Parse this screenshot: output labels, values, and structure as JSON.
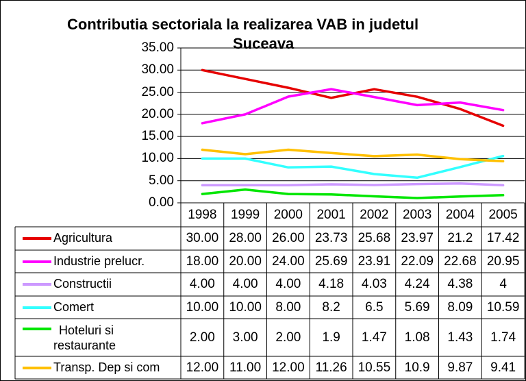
{
  "chart_data": {
    "type": "line",
    "title_line1": "Contributia sectoriala la realizarea VAB in judetul",
    "title_line2": "Suceava",
    "categories": [
      "1998",
      "1999",
      "2000",
      "2001",
      "2002",
      "2003",
      "2004",
      "2005"
    ],
    "ylim": [
      0,
      35
    ],
    "yticks": [
      "35.00",
      "30.00",
      "25.00",
      "20.00",
      "15.00",
      "10.00",
      "5.00",
      "0.00"
    ],
    "grid": true,
    "legend_placement": "data-table",
    "series": [
      {
        "name": "Agricultura",
        "color": "#e60000",
        "values": [
          30.0,
          28.0,
          26.0,
          23.73,
          25.68,
          23.97,
          21.2,
          17.42
        ],
        "labels": [
          "30.00",
          "28.00",
          "26.00",
          "23.73",
          "25.68",
          "23.97",
          "21.2",
          "17.42"
        ]
      },
      {
        "name": "Industrie prelucr.",
        "color": "#ff00ff",
        "values": [
          18.0,
          20.0,
          24.0,
          25.69,
          23.91,
          22.09,
          22.68,
          20.95
        ],
        "labels": [
          "18.00",
          "20.00",
          "24.00",
          "25.69",
          "23.91",
          "22.09",
          "22.68",
          "20.95"
        ]
      },
      {
        "name": "Constructii",
        "color": "#cc99ff",
        "values": [
          4.0,
          4.0,
          4.0,
          4.18,
          4.03,
          4.24,
          4.38,
          4
        ],
        "labels": [
          "4.00",
          "4.00",
          "4.00",
          "4.18",
          "4.03",
          "4.24",
          "4.38",
          "4"
        ]
      },
      {
        "name": "Comert",
        "color": "#33ffff",
        "values": [
          10.0,
          10.0,
          8.0,
          8.2,
          6.5,
          5.69,
          8.09,
          10.59
        ],
        "labels": [
          "10.00",
          "10.00",
          "8.00",
          "8.2",
          "6.5",
          "5.69",
          "8.09",
          "10.59"
        ]
      },
      {
        "name_line1": "Hoteluri si",
        "name_line2": "restaurante",
        "color": "#00e600",
        "values": [
          2.0,
          3.0,
          2.0,
          1.9,
          1.47,
          1.08,
          1.43,
          1.74
        ],
        "labels": [
          "2.00",
          "3.00",
          "2.00",
          "1.9",
          "1.47",
          "1.08",
          "1.43",
          "1.74"
        ]
      },
      {
        "name": "Transp. Dep si com",
        "color": "#ffc000",
        "values": [
          12.0,
          11.0,
          12.0,
          11.26,
          10.55,
          10.9,
          9.87,
          9.41
        ],
        "labels": [
          "12.00",
          "11.00",
          "12.00",
          "11.26",
          "10.55",
          "10.9",
          "9.87",
          "9.41"
        ]
      }
    ]
  }
}
